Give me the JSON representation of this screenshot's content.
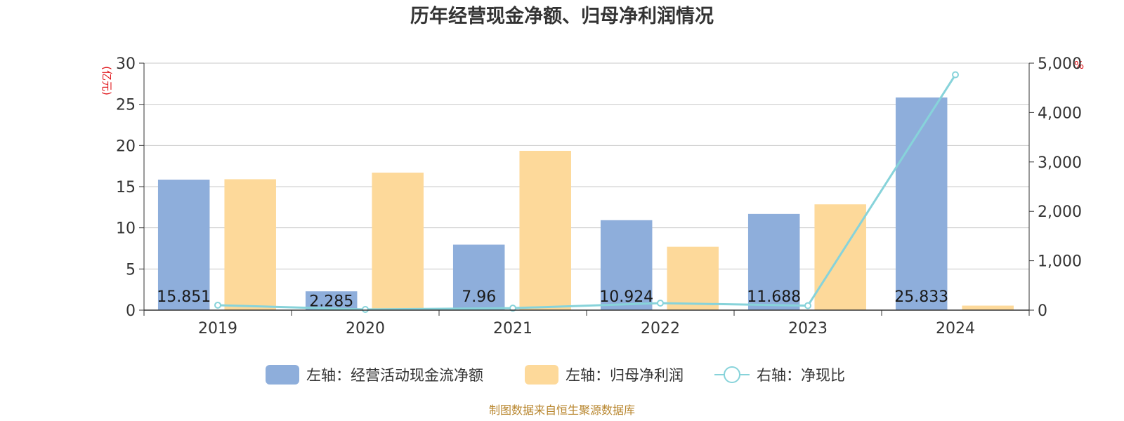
{
  "chart_data": {
    "type": "bar",
    "title": "历年经营现金净额、归母净利润情况",
    "categories": [
      "2019",
      "2020",
      "2021",
      "2022",
      "2023",
      "2024"
    ],
    "left_axis": {
      "unit": "(亿元)",
      "ylim": [
        0,
        30
      ],
      "ticks": [
        "0",
        "5",
        "10",
        "15",
        "20",
        "25",
        "30"
      ]
    },
    "right_axis": {
      "unit": "%",
      "ylim": [
        0,
        5000
      ],
      "ticks": [
        "0",
        "1,000",
        "2,000",
        "3,000",
        "4,000",
        "5,000"
      ]
    },
    "series": [
      {
        "name": "左轴：经营活动现金流净额",
        "type": "bar",
        "axis": "left",
        "color": "#8eaedb",
        "values": [
          15.851,
          2.285,
          7.96,
          10.924,
          11.688,
          25.833
        ],
        "labels": [
          "15.851",
          "2.285",
          "7.96",
          "10.924",
          "11.688",
          "25.833"
        ]
      },
      {
        "name": "左轴：归母净利润",
        "type": "bar",
        "axis": "left",
        "color": "#fdd99a",
        "values": [
          15.9,
          16.7,
          19.35,
          7.7,
          12.85,
          0.55
        ]
      },
      {
        "name": "右轴：净现比",
        "type": "line",
        "axis": "right",
        "color": "#87d3da",
        "values": [
          100,
          14,
          40,
          142,
          91,
          4765
        ]
      }
    ],
    "grid": true,
    "legend_position": "bottom"
  },
  "footer": {
    "source": "制图数据来自恒生聚源数据库"
  }
}
